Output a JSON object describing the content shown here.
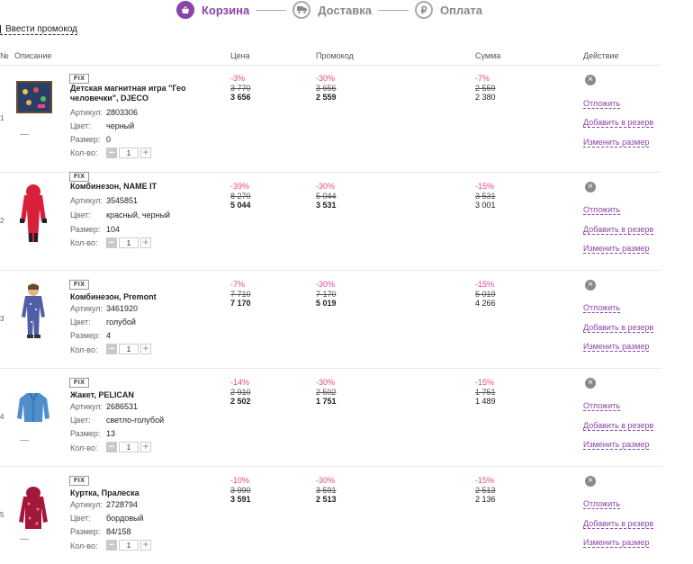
{
  "steps": [
    {
      "label": "Корзина",
      "icon": "basket-icon",
      "active": true
    },
    {
      "label": "Доставка",
      "icon": "truck-icon",
      "active": false
    },
    {
      "label": "Оплата",
      "icon": "ruble-icon",
      "glyph": "₽",
      "active": false
    }
  ],
  "promo_link": "Ввести промокод",
  "table_header": {
    "num": "№",
    "description": "Описание",
    "price": "Цена",
    "promo": "Промокод",
    "sum": "Сумма",
    "action": "Действие"
  },
  "labels": {
    "article": "Артикул:",
    "color": "Цвет:",
    "size": "Размер:",
    "qty": "Кол-во:",
    "postpone": "Отложить",
    "reserve": "Добавить в резерв",
    "change_size": "Изменить размер",
    "minus": "−",
    "plus": "+",
    "remove": "×"
  },
  "items": [
    {
      "num": "1",
      "badge": "FIX",
      "name": "Детская магнитная игра \"Гео человечки\", DJECO",
      "article": "2803306",
      "color": "черный",
      "size": "0",
      "qty": "1",
      "price_pct": "-3%",
      "price_old": "3 770",
      "price_new": "3 656",
      "promo_pct": "-30%",
      "promo_old": "3 656",
      "promo_new": "2 559",
      "sum_pct": "-7%",
      "sum_old": "2 559",
      "sum_new": "2 380",
      "image": "magnetic-game-image"
    },
    {
      "num": "2",
      "badge": "FIX",
      "name": "Комбинезон, NAME IT",
      "article": "3545851",
      "color": "красный, черный",
      "size": "104",
      "qty": "1",
      "price_pct": "-39%",
      "price_old": "8 270",
      "price_new": "5 044",
      "promo_pct": "-30%",
      "promo_old": "5 044",
      "promo_new": "3 531",
      "sum_pct": "-15%",
      "sum_old": "3 531",
      "sum_new": "3 001",
      "image": "red-overall-image"
    },
    {
      "num": "3",
      "badge": "FIX",
      "name": "Комбинезон, Premont",
      "article": "3461920",
      "color": "голубой",
      "size": "4",
      "qty": "1",
      "price_pct": "-7%",
      "price_old": "7 710",
      "price_new": "7 170",
      "promo_pct": "-30%",
      "promo_old": "7 170",
      "promo_new": "5 019",
      "sum_pct": "-15%",
      "sum_old": "5 019",
      "sum_new": "4 266",
      "image": "blue-overall-image"
    },
    {
      "num": "4",
      "badge": "FIX",
      "name": "Жакет, PELICAN",
      "article": "2686531",
      "color": "светло-голубой",
      "size": "13",
      "qty": "1",
      "price_pct": "-14%",
      "price_old": "2 910",
      "price_new": "2 502",
      "promo_pct": "-30%",
      "promo_old": "2 502",
      "promo_new": "1 751",
      "sum_pct": "-15%",
      "sum_old": "1 751",
      "sum_new": "1 489",
      "image": "denim-jacket-image"
    },
    {
      "num": "5",
      "badge": "FIX",
      "name": "Куртка, Пралеска",
      "article": "2728794",
      "color": "бордовый",
      "size": "84/158",
      "qty": "1",
      "price_pct": "-10%",
      "price_old": "3 990",
      "price_new": "3 591",
      "promo_pct": "-30%",
      "promo_old": "3 591",
      "promo_new": "2 513",
      "sum_pct": "-15%",
      "sum_old": "2 513",
      "sum_new": "2 136",
      "image": "burgundy-jacket-image"
    }
  ],
  "colors": {
    "accent": "#8b44a8",
    "discount": "#e8468a"
  }
}
